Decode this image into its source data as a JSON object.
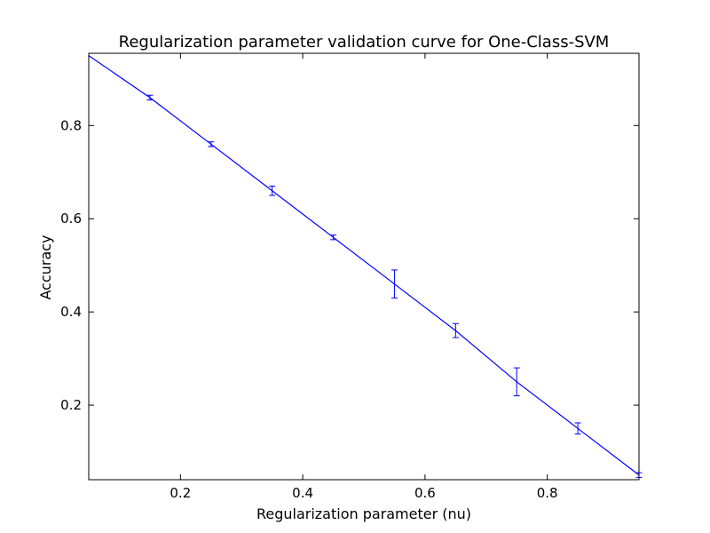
{
  "chart_data": {
    "type": "line",
    "title": "Regularization parameter validation curve for One-Class-SVM",
    "xlabel": "Regularization parameter (nu)",
    "ylabel": "Accuracy",
    "xlim": [
      0.05,
      0.95
    ],
    "ylim": [
      0.04,
      0.955
    ],
    "x_ticks": [
      0.2,
      0.4,
      0.6,
      0.8
    ],
    "y_ticks": [
      0.2,
      0.4,
      0.6,
      0.8
    ],
    "x_tick_labels": [
      "0.2",
      "0.4",
      "0.6",
      "0.8"
    ],
    "y_tick_labels": [
      "0.2",
      "0.4",
      "0.6",
      "0.8"
    ],
    "grid": false,
    "line_color": "#0000ff",
    "series": [
      {
        "x": [
          0.05,
          0.15,
          0.25,
          0.35,
          0.45,
          0.55,
          0.65,
          0.75,
          0.85,
          0.95
        ],
        "y": [
          0.95,
          0.86,
          0.76,
          0.66,
          0.56,
          0.46,
          0.36,
          0.25,
          0.15,
          0.05
        ],
        "error": [
          0.0,
          0.005,
          0.005,
          0.01,
          0.005,
          0.03,
          0.015,
          0.03,
          0.012,
          0.005
        ]
      }
    ]
  }
}
